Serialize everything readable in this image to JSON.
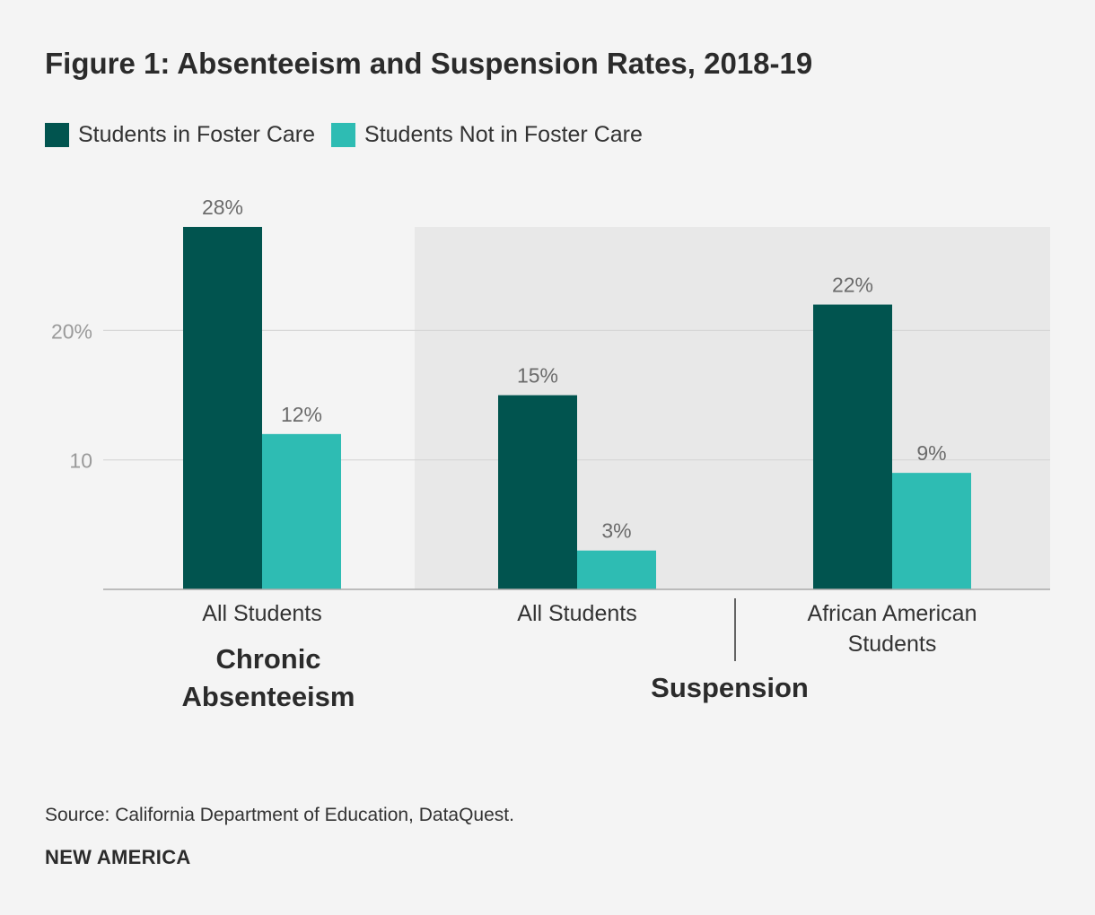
{
  "header": {
    "title": "Figure 1: Absenteeism and Suspension Rates, 2018-19"
  },
  "colors": {
    "foster": "#01544f",
    "not_foster": "#2ebcb3",
    "shade": "#e8e8e8",
    "grid": "#d6d6d6",
    "axis": "#a9a9a9"
  },
  "chart_data": {
    "type": "bar",
    "title": "Figure 1: Absenteeism and Suspension Rates, 2018-19",
    "categories": [
      "All Students",
      "All Students",
      "African American Students"
    ],
    "category_lines": [
      [
        "All Students"
      ],
      [
        "All Students"
      ],
      [
        "African American",
        "Students"
      ]
    ],
    "groups": [
      {
        "lines": [
          "Chronic",
          "Absenteeism"
        ],
        "categories": [
          0
        ]
      },
      {
        "lines": [
          "Suspension"
        ],
        "categories": [
          1,
          2
        ]
      }
    ],
    "series": [
      {
        "name": "Students in Foster Care",
        "values": [
          28,
          15,
          22
        ],
        "labels": [
          "28%",
          "15%",
          "22%"
        ]
      },
      {
        "name": "Students Not in Foster Care",
        "values": [
          12,
          3,
          9
        ],
        "labels": [
          "12%",
          "3%",
          "9%"
        ]
      }
    ],
    "yticks": [
      {
        "value": 10,
        "label": "10"
      },
      {
        "value": 20,
        "label": "20%"
      }
    ],
    "ylim": [
      0,
      28
    ],
    "shaded_group": "Suspension",
    "xlabel": "",
    "ylabel": ""
  },
  "footer": {
    "source": "Source: California Department of Education, DataQuest.",
    "brand": "NEW AMERICA"
  }
}
